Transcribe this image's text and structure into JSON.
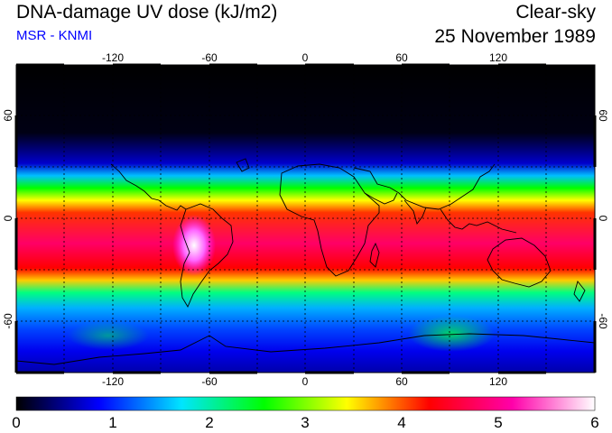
{
  "header": {
    "title": "DNA-damage UV dose (kJ/m2)",
    "subtitle": "MSR - KNMI",
    "condition": "Clear-sky",
    "date": "25 November 1989"
  },
  "map": {
    "lon_ticks": [
      "-120",
      "-60",
      "0",
      "60",
      "120"
    ],
    "lat_ticks": [
      "60",
      "0",
      "-60"
    ],
    "ocean_color": "#ffffff",
    "land_outline_color": "#000000"
  },
  "colorbar": {
    "labels": [
      "0",
      "1",
      "2",
      "3",
      "4",
      "5",
      "6"
    ],
    "colors": [
      "#000000",
      "#0000ff",
      "#00e5ff",
      "#00ff00",
      "#ffff00",
      "#ff0000",
      "#ff00aa",
      "#ffffff"
    ]
  }
}
